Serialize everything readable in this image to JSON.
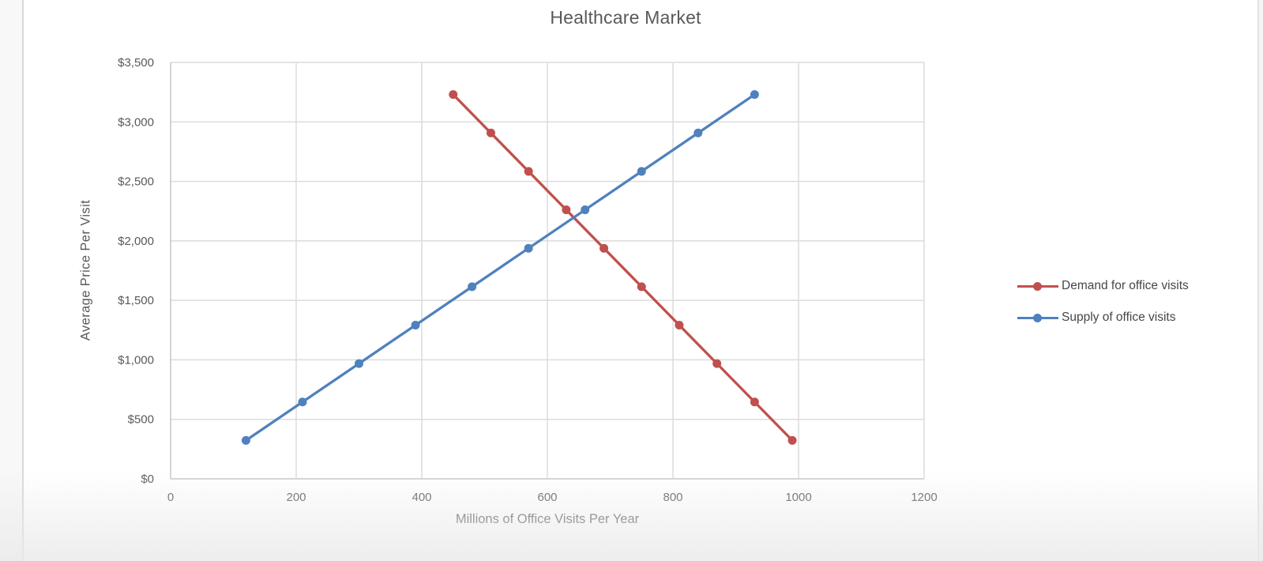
{
  "page": {
    "background": "#ffffff",
    "left_edge_color": "#d8d8d8",
    "right_edge_color": "#e2e2e2"
  },
  "chart_data": {
    "type": "line",
    "title": "Healthcare Market",
    "xlabel": "Millions of Office Visits Per Year",
    "ylabel": "Average Price Per Visit",
    "xlim": [
      0,
      1200
    ],
    "ylim": [
      0,
      3500
    ],
    "grid": true,
    "legend_position": "right",
    "grid_color": "#dcdcdc",
    "axis_color": "#c6c6c6",
    "text_color": "#595959",
    "x_ticks": {
      "values": [
        0,
        200,
        400,
        600,
        800,
        1000,
        1200
      ],
      "labels": [
        "0",
        "200",
        "400",
        "600",
        "800",
        "1000",
        "1200"
      ]
    },
    "y_ticks": {
      "values": [
        0,
        500,
        1000,
        1500,
        2000,
        2500,
        3000,
        3500
      ],
      "labels": [
        "$0",
        "$500",
        "$1,000",
        "$1,500",
        "$2,000",
        "$2,500",
        "$3,000",
        "$3,500"
      ]
    },
    "series": [
      {
        "name": "Demand for office visits",
        "slug": "demand",
        "color": "#C0504D",
        "marker": "circle",
        "points": [
          [
            450,
            3230
          ],
          [
            510,
            2907
          ],
          [
            570,
            2584
          ],
          [
            630,
            2261
          ],
          [
            690,
            1938
          ],
          [
            750,
            1615
          ],
          [
            810,
            1292
          ],
          [
            870,
            969
          ],
          [
            930,
            646
          ],
          [
            990,
            323
          ]
        ]
      },
      {
        "name": "Supply of office visits",
        "slug": "supply",
        "color": "#4F81BD",
        "marker": "circle",
        "points": [
          [
            120,
            323
          ],
          [
            210,
            646
          ],
          [
            300,
            969
          ],
          [
            390,
            1292
          ],
          [
            480,
            1615
          ],
          [
            570,
            1938
          ],
          [
            660,
            2261
          ],
          [
            750,
            2584
          ],
          [
            840,
            2907
          ],
          [
            930,
            3230
          ]
        ]
      }
    ]
  }
}
